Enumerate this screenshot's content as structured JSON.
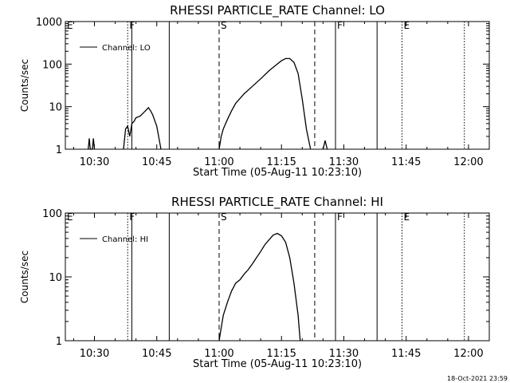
{
  "chart_data": [
    {
      "type": "line",
      "title": "RHESSI PARTICLE_RATE Channel: LO",
      "xlabel": "Start Time (05-Aug-11 10:23:10)",
      "ylabel": "Counts/sec",
      "y_scale": "log",
      "ylim": [
        1,
        1000
      ],
      "xlim": [
        "10:23",
        "12:05"
      ],
      "x_tick_labels": [
        "10:30",
        "10:45",
        "11:00",
        "11:15",
        "11:30",
        "11:45",
        "12:00"
      ],
      "y_tick_labels": [
        "1",
        "10",
        "100",
        "1000"
      ],
      "legend": {
        "placement": "top-left",
        "entries": [
          "Channel: LO"
        ]
      },
      "grid": false,
      "markers": [
        {
          "label": "E",
          "time": "10:23",
          "style": "solid"
        },
        {
          "label": "F",
          "time": "10:38",
          "style": "dotted"
        },
        {
          "label": "",
          "time": "10:39",
          "style": "solid"
        },
        {
          "label": "",
          "time": "10:48",
          "style": "solid"
        },
        {
          "label": "S",
          "time": "11:00",
          "style": "dashed"
        },
        {
          "label": "",
          "time": "11:23",
          "style": "dashed"
        },
        {
          "label": "F",
          "time": "11:28",
          "style": "solid"
        },
        {
          "label": "",
          "time": "11:38",
          "style": "solid"
        },
        {
          "label": "E",
          "time": "11:44",
          "style": "dotted"
        },
        {
          "label": "",
          "time": "11:59",
          "style": "dotted"
        }
      ],
      "series": [
        {
          "name": "Channel: LO",
          "segments": [
            [
              [
                "10:28:30",
                1
              ],
              [
                "10:28:45",
                1.8
              ],
              [
                "10:29:00",
                1
              ],
              [
                "10:29:30",
                1
              ],
              [
                "10:29:45",
                1.8
              ],
              [
                "10:30:00",
                1
              ]
            ],
            [
              [
                "10:37:00",
                1
              ],
              [
                "10:37:30",
                3
              ],
              [
                "10:38:00",
                3.5
              ],
              [
                "10:38:30",
                2
              ],
              [
                "10:39:00",
                4
              ],
              [
                "10:39:30",
                4.5
              ],
              [
                "10:40:00",
                5.5
              ],
              [
                "10:41:00",
                6
              ],
              [
                "10:42:00",
                7.5
              ],
              [
                "10:43:00",
                9.5
              ],
              [
                "10:43:30",
                8
              ],
              [
                "10:44:00",
                6.5
              ],
              [
                "10:45:00",
                3.5
              ],
              [
                "10:46:00",
                1
              ]
            ],
            [
              [
                "11:00:00",
                1
              ],
              [
                "11:00:30",
                2
              ],
              [
                "11:01:00",
                3
              ],
              [
                "11:02:00",
                5
              ],
              [
                "11:03:00",
                8
              ],
              [
                "11:04:00",
                12
              ],
              [
                "11:06:00",
                20
              ],
              [
                "11:08:00",
                30
              ],
              [
                "11:10:00",
                45
              ],
              [
                "11:12:00",
                70
              ],
              [
                "11:14:00",
                100
              ],
              [
                "11:15:00",
                120
              ],
              [
                "11:16:00",
                135
              ],
              [
                "11:17:00",
                135
              ],
              [
                "11:18:00",
                110
              ],
              [
                "11:19:00",
                60
              ],
              [
                "11:20:00",
                15
              ],
              [
                "11:21:00",
                3
              ],
              [
                "11:22:00",
                1
              ]
            ],
            [
              [
                "11:25:00",
                1
              ],
              [
                "11:25:30",
                1.6
              ],
              [
                "11:26:00",
                1
              ]
            ]
          ]
        }
      ]
    },
    {
      "type": "line",
      "title": "RHESSI PARTICLE_RATE Channel: HI",
      "xlabel": "Start Time (05-Aug-11 10:23:10)",
      "ylabel": "Counts/sec",
      "y_scale": "log",
      "ylim": [
        1,
        100
      ],
      "xlim": [
        "10:23",
        "12:05"
      ],
      "x_tick_labels": [
        "10:30",
        "10:45",
        "11:00",
        "11:15",
        "11:30",
        "11:45",
        "12:00"
      ],
      "y_tick_labels": [
        "1",
        "10",
        "100"
      ],
      "legend": {
        "placement": "top-left",
        "entries": [
          "Channel: HI"
        ]
      },
      "grid": false,
      "markers": [
        {
          "label": "E",
          "time": "10:23",
          "style": "solid"
        },
        {
          "label": "F",
          "time": "10:38",
          "style": "dotted"
        },
        {
          "label": "",
          "time": "10:39",
          "style": "solid"
        },
        {
          "label": "",
          "time": "10:48",
          "style": "solid"
        },
        {
          "label": "S",
          "time": "11:00",
          "style": "dashed"
        },
        {
          "label": "",
          "time": "11:23",
          "style": "dashed"
        },
        {
          "label": "F",
          "time": "11:28",
          "style": "solid"
        },
        {
          "label": "",
          "time": "11:38",
          "style": "solid"
        },
        {
          "label": "E",
          "time": "11:44",
          "style": "dotted"
        },
        {
          "label": "",
          "time": "11:59",
          "style": "dotted"
        }
      ],
      "series": [
        {
          "name": "Channel: HI",
          "segments": [
            [
              [
                "11:00:00",
                1
              ],
              [
                "11:00:30",
                1.6
              ],
              [
                "11:01:00",
                2.5
              ],
              [
                "11:02:00",
                4
              ],
              [
                "11:03:00",
                6
              ],
              [
                "11:04:00",
                8
              ],
              [
                "11:05:00",
                9
              ],
              [
                "11:06:00",
                11
              ],
              [
                "11:07:00",
                13
              ],
              [
                "11:08:00",
                16
              ],
              [
                "11:09:00",
                20
              ],
              [
                "11:10:00",
                25
              ],
              [
                "11:11:00",
                32
              ],
              [
                "11:12:00",
                38
              ],
              [
                "11:13:00",
                45
              ],
              [
                "11:14:00",
                48
              ],
              [
                "11:15:00",
                44
              ],
              [
                "11:16:00",
                35
              ],
              [
                "11:17:00",
                20
              ],
              [
                "11:18:00",
                8
              ],
              [
                "11:19:00",
                2.5
              ],
              [
                "11:19:30",
                1
              ]
            ]
          ]
        }
      ]
    }
  ],
  "timestamp": "18-Oct-2021 23:59"
}
